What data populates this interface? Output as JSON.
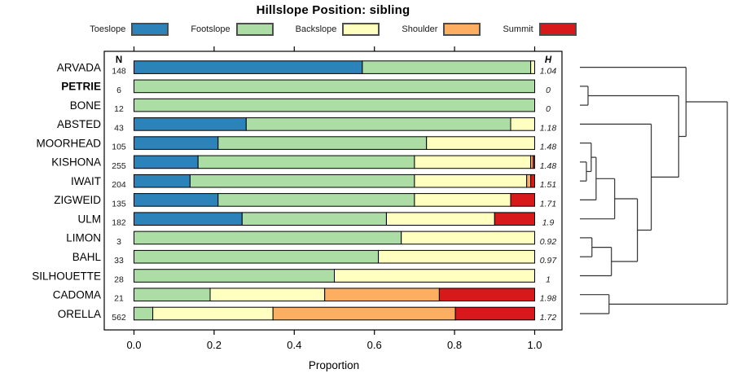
{
  "chart_data": {
    "type": "bar",
    "orientation": "horizontal-stacked",
    "title": "Hillslope Position: sibling",
    "xlabel": "Proportion",
    "xlim": [
      0,
      1
    ],
    "x_ticks": [
      "0.0",
      "0.2",
      "0.4",
      "0.6",
      "0.8",
      "1.0"
    ],
    "grid": false,
    "legend_position": "top",
    "n_header": "N",
    "h_header": "H",
    "legend": [
      {
        "label": "Toeslope",
        "color": "#2b83ba"
      },
      {
        "label": "Footslope",
        "color": "#abdda4"
      },
      {
        "label": "Backslope",
        "color": "#ffffbf"
      },
      {
        "label": "Shoulder",
        "color": "#fdae61"
      },
      {
        "label": "Summit",
        "color": "#d7191c"
      }
    ],
    "rows": [
      {
        "label": "ARVADA",
        "n": 148,
        "h": "1.04",
        "bold": false,
        "props": [
          0.57,
          0.42,
          0.01,
          0,
          0
        ]
      },
      {
        "label": "PETRIE",
        "n": 6,
        "h": "0",
        "bold": true,
        "props": [
          0,
          1,
          0,
          0,
          0
        ]
      },
      {
        "label": "BONE",
        "n": 12,
        "h": "0",
        "bold": false,
        "props": [
          0,
          1,
          0,
          0,
          0
        ]
      },
      {
        "label": "ABSTED",
        "n": 43,
        "h": "1.18",
        "bold": false,
        "props": [
          0.28,
          0.66,
          0.06,
          0,
          0
        ]
      },
      {
        "label": "MOORHEAD",
        "n": 105,
        "h": "1.48",
        "bold": false,
        "props": [
          0.21,
          0.52,
          0.27,
          0,
          0
        ]
      },
      {
        "label": "KISHONA",
        "n": 255,
        "h": "1.48",
        "bold": false,
        "props": [
          0.16,
          0.54,
          0.29,
          0.006,
          0.004
        ]
      },
      {
        "label": "IWAIT",
        "n": 204,
        "h": "1.51",
        "bold": false,
        "props": [
          0.14,
          0.56,
          0.28,
          0.01,
          0.01
        ]
      },
      {
        "label": "ZIGWEID",
        "n": 135,
        "h": "1.71",
        "bold": false,
        "props": [
          0.21,
          0.49,
          0.24,
          0,
          0.06
        ]
      },
      {
        "label": "ULM",
        "n": 182,
        "h": "1.9",
        "bold": false,
        "props": [
          0.27,
          0.36,
          0.27,
          0,
          0.1
        ]
      },
      {
        "label": "LIMON",
        "n": 3,
        "h": "0.92",
        "bold": false,
        "props": [
          0,
          0.667,
          0.333,
          0,
          0
        ]
      },
      {
        "label": "BAHL",
        "n": 33,
        "h": "0.97",
        "bold": false,
        "props": [
          0,
          0.61,
          0.39,
          0,
          0
        ]
      },
      {
        "label": "SILHOUETTE",
        "n": 28,
        "h": "1",
        "bold": false,
        "props": [
          0,
          0.5,
          0.5,
          0,
          0
        ]
      },
      {
        "label": "CADOMA",
        "n": 21,
        "h": "1.98",
        "bold": false,
        "props": [
          0,
          0.19,
          0.286,
          0.286,
          0.238
        ]
      },
      {
        "label": "ORELLA",
        "n": 562,
        "h": "1.72",
        "bold": false,
        "props": [
          0,
          0.047,
          0.3,
          0.455,
          0.198
        ]
      }
    ],
    "dendrogram": {
      "h": 1.0,
      "children": [
        {
          "h": 0.72,
          "children": [
            {
              "leaf": 0
            },
            {
              "h": 0.67,
              "children": [
                {
                  "h": 0.055,
                  "children": [
                    {
                      "leaf": 1
                    },
                    {
                      "leaf": 2
                    }
                  ]
                },
                {
                  "h": 0.484,
                  "children": [
                    {
                      "leaf": 3
                    },
                    {
                      "h": 0.39,
                      "children": [
                        {
                          "h": 0.236,
                          "children": [
                            {
                              "h": 0.11,
                              "children": [
                                {
                                  "h": 0.077,
                                  "children": [
                                    {
                                      "leaf": 4
                                    },
                                    {
                                      "h": 0.044,
                                      "children": [
                                        {
                                          "leaf": 5
                                        },
                                        {
                                          "leaf": 6
                                        }
                                      ]
                                    }
                                  ]
                                },
                                {
                                  "leaf": 7
                                }
                              ]
                            },
                            {
                              "leaf": 8
                            }
                          ]
                        },
                        {
                          "h": 0.214,
                          "children": [
                            {
                              "h": 0.082,
                              "children": [
                                {
                                  "leaf": 9
                                },
                                {
                                  "leaf": 10
                                }
                              ]
                            },
                            {
                              "leaf": 11
                            }
                          ]
                        }
                      ]
                    }
                  ]
                }
              ]
            }
          ]
        },
        {
          "h": 0.198,
          "children": [
            {
              "leaf": 12
            },
            {
              "leaf": 13
            }
          ]
        }
      ]
    }
  }
}
